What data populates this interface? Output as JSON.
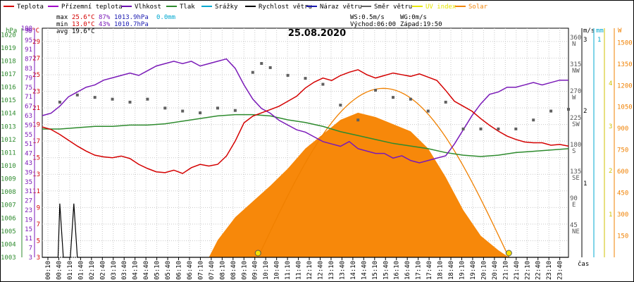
{
  "legend": [
    {
      "label": "Teplota",
      "color": "#d40000"
    },
    {
      "label": "Přízemní teplota",
      "color": "#a000c8"
    },
    {
      "label": "Vlhkost",
      "color": "#6a0fb0"
    },
    {
      "label": "Tlak",
      "color": "#2e8b2e"
    },
    {
      "label": "Srážky",
      "color": "#00a8d0"
    },
    {
      "label": "Rychlost větru",
      "color": "#000000"
    },
    {
      "label": "Náraz větru",
      "color": "#1a1ab0"
    },
    {
      "label": "Směr větru",
      "color": "#606060"
    },
    {
      "label": "UV index",
      "color": "#e6e600"
    },
    {
      "label": "Solar",
      "color": "#f0850a"
    }
  ],
  "stats": {
    "max_label": "max",
    "max_temp": "25.6°C",
    "max_hum": "87%",
    "max_press": "1013.9hPa",
    "max_rain": "0.0mm",
    "min_label": "min",
    "min_temp": "13.0°C",
    "min_hum": "43%",
    "min_press": "1010.7hPa",
    "avg_label": "avg",
    "avg_temp": "19.6°C"
  },
  "wind_info": {
    "ws": "WS:0.5m/s",
    "wg": "WG:0m/s",
    "sunrise": "Východ:06:00",
    "sunset": "Západ:19:50"
  },
  "chart_title": "25.08.2020",
  "x_axis_label": "čas",
  "colors": {
    "temp": "#d40000",
    "humidity": "#7a1ab8",
    "pressure": "#2e8b2e",
    "wind": "#000000",
    "direction": "#606060",
    "solar": "#f7880a",
    "solar_line": "#f08000",
    "uv": "#e6e600",
    "rain": "#00a8d0"
  },
  "chart_data": {
    "type": "line",
    "title": "25.08.2020",
    "x_ticks": [
      "00:10",
      "00:40",
      "01:10",
      "01:40",
      "02:10",
      "02:40",
      "03:10",
      "03:40",
      "04:10",
      "04:40",
      "05:10",
      "05:40",
      "06:10",
      "06:40",
      "07:10",
      "07:40",
      "08:10",
      "08:40",
      "09:10",
      "09:40",
      "10:10",
      "10:40",
      "11:10",
      "11:40",
      "12:10",
      "12:40",
      "13:10",
      "13:40",
      "14:10",
      "14:40",
      "15:10",
      "15:40",
      "16:10",
      "16:40",
      "17:10",
      "17:40",
      "18:10",
      "18:40",
      "19:10",
      "19:40",
      "20:10",
      "20:40",
      "21:10",
      "21:40",
      "22:10",
      "22:40",
      "23:10",
      "23:40"
    ],
    "axes": {
      "hpa": {
        "label": "hPa",
        "ticks": [
          1003,
          1004,
          1005,
          1006,
          1007,
          1008,
          1009,
          1010,
          1011,
          1012,
          1013,
          1014,
          1015,
          1016,
          1017,
          1018,
          1019,
          1020
        ]
      },
      "pct": {
        "label": "%",
        "ticks": [
          3,
          7,
          11,
          15,
          19,
          23,
          27,
          31,
          35,
          39,
          43,
          47,
          51,
          55,
          59,
          63,
          67,
          71,
          75,
          79,
          83,
          87,
          91,
          95,
          99,
          100
        ]
      },
      "degc": {
        "label": "°C",
        "ticks": [
          3,
          5,
          7,
          9,
          11,
          13,
          15,
          17,
          19,
          21,
          23,
          25,
          27,
          29
        ]
      },
      "dir": {
        "ticks": [
          {
            "deg": "360",
            "dir": "N"
          },
          {
            "deg": "315",
            "dir": "NW"
          },
          {
            "deg": "270",
            "dir": "W"
          },
          {
            "deg": "225",
            "dir": "SW"
          },
          {
            "deg": "180",
            "dir": "S"
          },
          {
            "deg": "135",
            "dir": "SE"
          },
          {
            "deg": "90",
            "dir": "E"
          },
          {
            "deg": "45",
            "dir": "NE"
          }
        ]
      },
      "ms": {
        "label": "m/s",
        "ticks": [
          "3",
          "2",
          "1"
        ]
      },
      "mm": {
        "label": "mm",
        "ticks": [
          "1"
        ]
      },
      "uv": {
        "label": "UV",
        "ticks": [
          "4",
          "3",
          "2",
          "1"
        ]
      },
      "watt": {
        "label": "W",
        "ticks": [
          1500,
          1350,
          1200,
          1050,
          900,
          750,
          600,
          450,
          300,
          150
        ]
      }
    },
    "series": [
      {
        "name": "Teplota",
        "unit": "°C",
        "points": [
          [
            0,
            18.7
          ],
          [
            0.5,
            18.4
          ],
          [
            1,
            17.8
          ],
          [
            1.5,
            17.1
          ],
          [
            2,
            16.4
          ],
          [
            2.5,
            15.8
          ],
          [
            3,
            15.3
          ],
          [
            3.5,
            15.1
          ],
          [
            4,
            15.0
          ],
          [
            4.5,
            15.2
          ],
          [
            5,
            14.9
          ],
          [
            5.5,
            14.2
          ],
          [
            6,
            13.7
          ],
          [
            6.5,
            13.3
          ],
          [
            7,
            13.2
          ],
          [
            7.5,
            13.5
          ],
          [
            8,
            13.1
          ],
          [
            8.5,
            13.8
          ],
          [
            9,
            14.2
          ],
          [
            9.5,
            14.0
          ],
          [
            10,
            14.2
          ],
          [
            10.5,
            15.2
          ],
          [
            11,
            17.0
          ],
          [
            11.5,
            19.2
          ],
          [
            12,
            20.0
          ],
          [
            12.5,
            20.4
          ],
          [
            13,
            20.8
          ],
          [
            13.5,
            21.2
          ],
          [
            14,
            21.8
          ],
          [
            14.5,
            22.4
          ],
          [
            15,
            23.4
          ],
          [
            15.5,
            24.1
          ],
          [
            16,
            24.6
          ],
          [
            16.5,
            24.3
          ],
          [
            17,
            24.9
          ],
          [
            17.5,
            25.3
          ],
          [
            18,
            25.6
          ],
          [
            18.5,
            25.0
          ],
          [
            19,
            24.6
          ],
          [
            19.5,
            24.9
          ],
          [
            20,
            25.2
          ],
          [
            20.5,
            25.0
          ],
          [
            21,
            24.8
          ],
          [
            21.5,
            25.1
          ],
          [
            22,
            24.7
          ],
          [
            22.5,
            24.3
          ],
          [
            23,
            23.1
          ],
          [
            23.5,
            21.8
          ],
          [
            24,
            21.2
          ],
          [
            24.5,
            20.6
          ],
          [
            25,
            19.7
          ],
          [
            25.5,
            18.9
          ],
          [
            26,
            18.2
          ],
          [
            26.5,
            17.6
          ],
          [
            27,
            17.2
          ],
          [
            27.5,
            16.9
          ],
          [
            28,
            16.8
          ],
          [
            28.5,
            16.8
          ],
          [
            29,
            16.5
          ],
          [
            29.5,
            16.6
          ],
          [
            30,
            16.4
          ]
        ]
      },
      {
        "name": "Vlhkost",
        "unit": "%",
        "points": [
          [
            0,
            63
          ],
          [
            0.5,
            64
          ],
          [
            1,
            67
          ],
          [
            1.5,
            71
          ],
          [
            2,
            73
          ],
          [
            2.5,
            75
          ],
          [
            3,
            76
          ],
          [
            3.5,
            78
          ],
          [
            4,
            79
          ],
          [
            4.5,
            80
          ],
          [
            5,
            81
          ],
          [
            5.5,
            80
          ],
          [
            6,
            82
          ],
          [
            6.5,
            84
          ],
          [
            7,
            85
          ],
          [
            7.5,
            86
          ],
          [
            8,
            85
          ],
          [
            8.5,
            86
          ],
          [
            9,
            84
          ],
          [
            9.5,
            85
          ],
          [
            10,
            86
          ],
          [
            10.5,
            87
          ],
          [
            11,
            83
          ],
          [
            11.5,
            76
          ],
          [
            12,
            70
          ],
          [
            12.5,
            66
          ],
          [
            13,
            64
          ],
          [
            13.5,
            61
          ],
          [
            14,
            59
          ],
          [
            14.5,
            57
          ],
          [
            15,
            56
          ],
          [
            15.5,
            54
          ],
          [
            16,
            52
          ],
          [
            16.5,
            51
          ],
          [
            17,
            50
          ],
          [
            17.5,
            52
          ],
          [
            18,
            49
          ],
          [
            18.5,
            48
          ],
          [
            19,
            47
          ],
          [
            19.5,
            47
          ],
          [
            20,
            45
          ],
          [
            20.5,
            46
          ],
          [
            21,
            44
          ],
          [
            21.5,
            43
          ],
          [
            22,
            44
          ],
          [
            22.5,
            45
          ],
          [
            23,
            46
          ],
          [
            23.5,
            51
          ],
          [
            24,
            57
          ],
          [
            24.5,
            63
          ],
          [
            25,
            68
          ],
          [
            25.5,
            72
          ],
          [
            26,
            73
          ],
          [
            26.5,
            75
          ],
          [
            27,
            75
          ],
          [
            27.5,
            76
          ],
          [
            28,
            77
          ],
          [
            28.5,
            76
          ],
          [
            29,
            77
          ],
          [
            29.5,
            78
          ],
          [
            30,
            78
          ]
        ]
      },
      {
        "name": "Tlak",
        "unit": "hPa",
        "points": [
          [
            0,
            1012.8
          ],
          [
            1,
            1012.8
          ],
          [
            2,
            1012.9
          ],
          [
            3,
            1013.0
          ],
          [
            4,
            1013.0
          ],
          [
            5,
            1013.1
          ],
          [
            6,
            1013.1
          ],
          [
            7,
            1013.2
          ],
          [
            8,
            1013.4
          ],
          [
            9,
            1013.6
          ],
          [
            10,
            1013.8
          ],
          [
            11,
            1013.9
          ],
          [
            12,
            1013.9
          ],
          [
            13,
            1013.8
          ],
          [
            14,
            1013.5
          ],
          [
            15,
            1013.3
          ],
          [
            16,
            1013.0
          ],
          [
            17,
            1012.6
          ],
          [
            18,
            1012.3
          ],
          [
            19,
            1012.0
          ],
          [
            20,
            1011.7
          ],
          [
            21,
            1011.5
          ],
          [
            22,
            1011.3
          ],
          [
            23,
            1011.0
          ],
          [
            24,
            1010.8
          ],
          [
            25,
            1010.7
          ],
          [
            26,
            1010.8
          ],
          [
            27,
            1011.0
          ],
          [
            28,
            1011.1
          ],
          [
            29,
            1011.2
          ],
          [
            30,
            1011.3
          ]
        ]
      },
      {
        "name": "Rychlost větru",
        "unit": "m/s",
        "points": [
          [
            0,
            0
          ],
          [
            0.9,
            0
          ],
          [
            1,
            0.75
          ],
          [
            1.2,
            0
          ],
          [
            1.6,
            0
          ],
          [
            1.8,
            0.75
          ],
          [
            2.0,
            0
          ],
          [
            30,
            0
          ]
        ]
      },
      {
        "name": "Solar",
        "unit": "W",
        "points": [
          [
            0,
            0
          ],
          [
            9.5,
            0
          ],
          [
            10,
            120
          ],
          [
            11,
            280
          ],
          [
            12,
            390
          ],
          [
            13,
            500
          ],
          [
            14,
            620
          ],
          [
            15,
            760
          ],
          [
            16,
            860
          ],
          [
            17,
            960
          ],
          [
            18,
            1010
          ],
          [
            19,
            980
          ],
          [
            20,
            930
          ],
          [
            21,
            880
          ],
          [
            22,
            760
          ],
          [
            23,
            560
          ],
          [
            24,
            330
          ],
          [
            25,
            150
          ],
          [
            26,
            50
          ],
          [
            26.6,
            0
          ],
          [
            30,
            0
          ]
        ]
      },
      {
        "name": "Směr větru",
        "unit": "°",
        "points": [
          [
            1,
            250
          ],
          [
            2,
            262
          ],
          [
            3,
            258
          ],
          [
            4,
            255
          ],
          [
            5,
            250
          ],
          [
            6,
            255
          ],
          [
            7,
            240
          ],
          [
            8,
            235
          ],
          [
            9,
            232
          ],
          [
            10,
            240
          ],
          [
            11,
            236
          ],
          [
            12,
            300
          ],
          [
            12.5,
            315
          ],
          [
            13,
            308
          ],
          [
            14,
            295
          ],
          [
            15,
            290
          ],
          [
            16,
            280
          ],
          [
            17,
            245
          ],
          [
            18,
            220
          ],
          [
            19,
            270
          ],
          [
            20,
            258
          ],
          [
            21,
            255
          ],
          [
            22,
            235
          ],
          [
            23,
            250
          ],
          [
            24,
            205
          ],
          [
            25,
            205
          ],
          [
            26,
            205
          ],
          [
            27,
            205
          ],
          [
            28,
            220
          ],
          [
            29,
            235
          ],
          [
            30,
            238
          ]
        ]
      }
    ]
  }
}
